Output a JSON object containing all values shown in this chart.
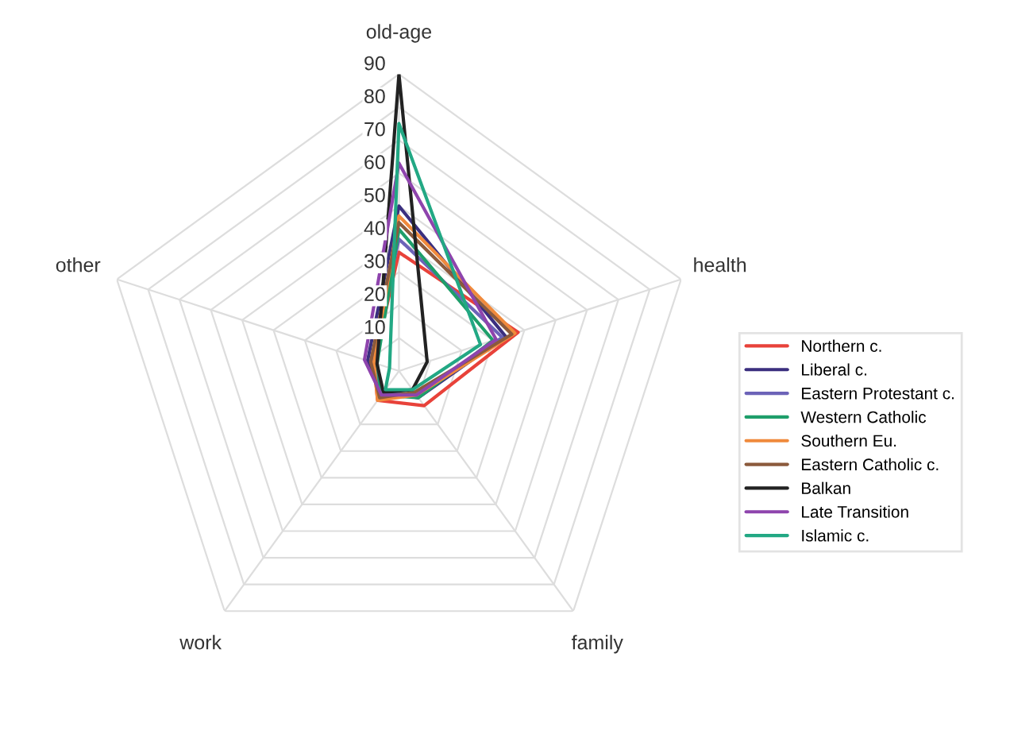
{
  "chart_data": {
    "type": "radar",
    "categories": [
      "old-age",
      "health",
      "family",
      "work",
      "other"
    ],
    "ylim": [
      0,
      90
    ],
    "yticks": [
      10,
      20,
      30,
      40,
      50,
      60,
      70,
      80,
      90
    ],
    "grid": true,
    "legend": "right",
    "series": [
      {
        "name": "Northern c.",
        "color": "#e8423a",
        "values": [
          36,
          38,
          13,
          11,
          8
        ]
      },
      {
        "name": "Liberal c.",
        "color": "#3b2f7f",
        "values": [
          50,
          34,
          10,
          8,
          10
        ]
      },
      {
        "name": "Eastern Protestant c.",
        "color": "#6c63b8",
        "values": [
          40,
          33,
          9,
          8,
          9
        ]
      },
      {
        "name": "Western Catholic",
        "color": "#1e9e6a",
        "values": [
          43,
          30,
          10,
          9,
          7
        ]
      },
      {
        "name": "Southern Eu.",
        "color": "#f08a3c",
        "values": [
          47,
          37,
          9,
          11,
          8
        ]
      },
      {
        "name": "Eastern Catholic c.",
        "color": "#8b5a3c",
        "values": [
          45,
          36,
          8,
          10,
          9
        ]
      },
      {
        "name": "Balkan",
        "color": "#222222",
        "values": [
          90,
          9,
          7,
          8,
          7
        ]
      },
      {
        "name": "Late Transition",
        "color": "#8e44ad",
        "values": [
          63,
          31,
          9,
          9,
          11
        ]
      },
      {
        "name": "Islamic c.",
        "color": "#22a884",
        "values": [
          75,
          26,
          7,
          7,
          3
        ]
      }
    ]
  }
}
